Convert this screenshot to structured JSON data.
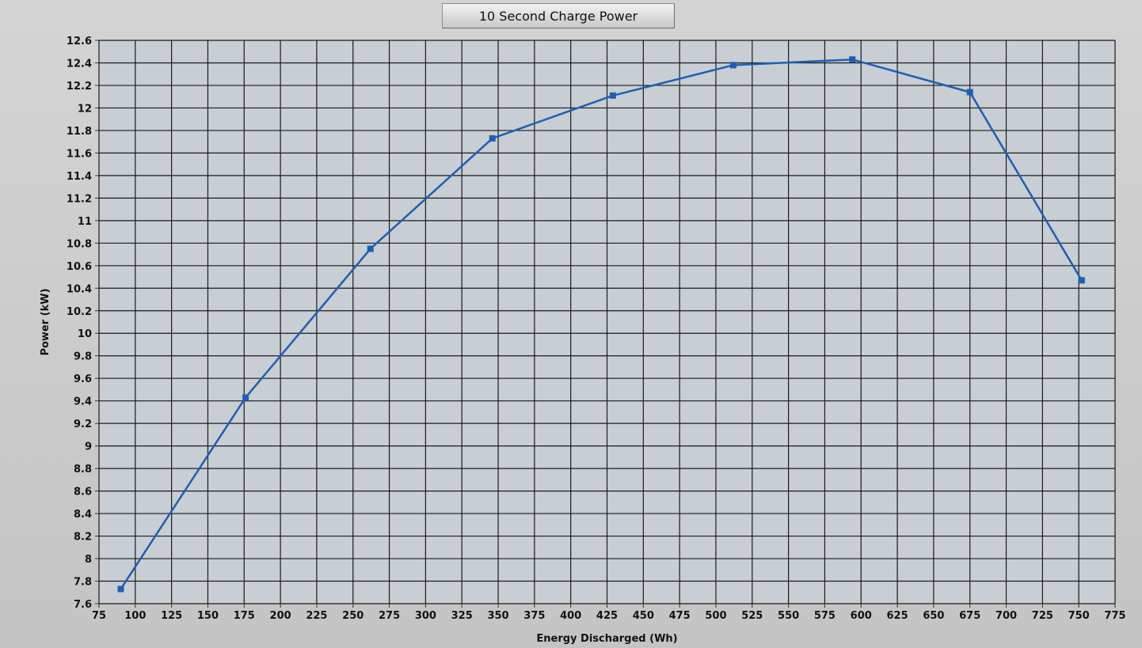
{
  "colors": {
    "plot_bg": "#c8ced4",
    "grid": "#1a1a1a",
    "series": "#1f5fb3"
  },
  "chart_data": {
    "type": "line",
    "title": "10 Second Charge Power",
    "xlabel": "Energy Discharged (Wh)",
    "ylabel": "Power (kW)",
    "xlim": [
      75,
      775
    ],
    "ylim": [
      7.6,
      12.6
    ],
    "x_ticks": [
      "75",
      "100",
      "125",
      "150",
      "175",
      "200",
      "225",
      "250",
      "275",
      "300",
      "325",
      "350",
      "375",
      "400",
      "425",
      "450",
      "475",
      "500",
      "525",
      "550",
      "575",
      "600",
      "625",
      "650",
      "675",
      "700",
      "725",
      "750",
      "775"
    ],
    "y_ticks": [
      "7.6",
      "7.8",
      "8",
      "8.2",
      "8.4",
      "8.6",
      "8.8",
      "9",
      "9.2",
      "9.4",
      "9.6",
      "9.8",
      "10",
      "10.2",
      "10.4",
      "10.6",
      "10.8",
      "11",
      "11.2",
      "11.4",
      "11.6",
      "11.8",
      "12",
      "12.2",
      "12.4",
      "12.6"
    ],
    "grid": true,
    "marker": "square",
    "series": [
      {
        "x": [
          90,
          176,
          262,
          346,
          429,
          512,
          594,
          675,
          752
        ],
        "y": [
          7.73,
          9.43,
          10.75,
          11.73,
          12.11,
          12.38,
          12.43,
          12.14,
          10.47
        ]
      }
    ]
  }
}
